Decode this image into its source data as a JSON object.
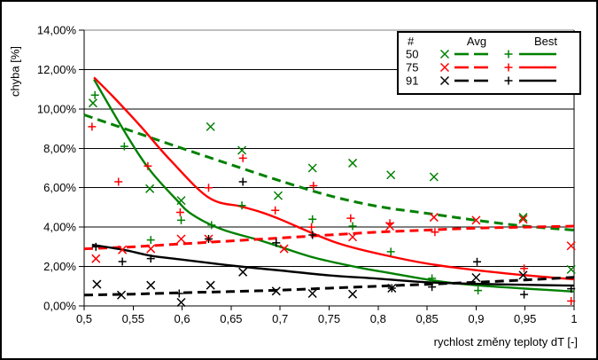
{
  "chart_data": {
    "type": "scatter",
    "title": "",
    "ylabel": "chyba [%]",
    "xlabel": "rychlost změny teploty dT [-]",
    "x_range": [
      0.5,
      1.0
    ],
    "y_range_pct": [
      0,
      14
    ],
    "grid": "horizontal",
    "x_ticks": [
      "0,5",
      "0,55",
      "0,6",
      "0,65",
      "0,7",
      "0,75",
      "0,8",
      "0,85",
      "0,9",
      "0,95",
      "1"
    ],
    "x_tick_values": [
      0.5,
      0.55,
      0.6,
      0.65,
      0.7,
      0.75,
      0.8,
      0.85,
      0.9,
      0.95,
      1.0
    ],
    "y_ticks": [
      "0,00%",
      "2,00%",
      "4,00%",
      "6,00%",
      "8,00%",
      "10,00%",
      "12,00%",
      "14,00%"
    ],
    "y_tick_values": [
      0,
      2,
      4,
      6,
      8,
      10,
      12,
      14
    ],
    "legend": {
      "position": "top-right-inside",
      "col_hash": "#",
      "col_avg": "Avg",
      "col_best": "Best",
      "rows": [
        "50",
        "75",
        "91"
      ]
    },
    "colors": {
      "50": "#008000",
      "75": "#ff0000",
      "91": "#000000",
      "plot_top_border": "#808080"
    },
    "series": [
      {
        "name": "avg-50-trend",
        "group": "50",
        "kind": "trend",
        "style": "dashed",
        "color": "#008000",
        "points": [
          [
            0.5,
            9.7
          ],
          [
            0.55,
            8.85
          ],
          [
            0.6,
            8.0
          ],
          [
            0.66,
            7.0
          ],
          [
            0.7,
            6.35
          ],
          [
            0.75,
            5.6
          ],
          [
            0.8,
            5.05
          ],
          [
            0.85,
            4.7
          ],
          [
            0.9,
            4.35
          ],
          [
            0.95,
            4.05
          ],
          [
            1.0,
            3.85
          ]
        ]
      },
      {
        "name": "best-50-trend",
        "group": "50",
        "kind": "trend",
        "style": "solid",
        "color": "#008000",
        "points": [
          [
            0.51,
            11.5
          ],
          [
            0.543,
            8.7
          ],
          [
            0.567,
            6.9
          ],
          [
            0.594,
            5.4
          ],
          [
            0.61,
            4.65
          ],
          [
            0.64,
            3.9
          ],
          [
            0.678,
            3.35
          ],
          [
            0.7,
            3.0
          ],
          [
            0.735,
            2.45
          ],
          [
            0.78,
            1.95
          ],
          [
            0.814,
            1.65
          ],
          [
            0.86,
            1.26
          ],
          [
            0.9,
            1.05
          ],
          [
            0.95,
            0.88
          ],
          [
            1.0,
            0.73
          ]
        ]
      },
      {
        "name": "avg-75-trend",
        "group": "75",
        "kind": "trend",
        "style": "dashed",
        "color": "#ff0000",
        "points": [
          [
            0.5,
            2.9
          ],
          [
            0.55,
            3.0
          ],
          [
            0.6,
            3.15
          ],
          [
            0.65,
            3.3
          ],
          [
            0.7,
            3.45
          ],
          [
            0.75,
            3.6
          ],
          [
            0.8,
            3.75
          ],
          [
            0.85,
            3.85
          ],
          [
            0.9,
            3.95
          ],
          [
            0.95,
            4.0
          ],
          [
            1.0,
            4.05
          ]
        ]
      },
      {
        "name": "best-75-trend",
        "group": "75",
        "kind": "trend",
        "style": "solid",
        "color": "#ff0000",
        "points": [
          [
            0.51,
            11.6
          ],
          [
            0.53,
            10.6
          ],
          [
            0.558,
            9.1
          ],
          [
            0.588,
            7.4
          ],
          [
            0.627,
            5.5
          ],
          [
            0.66,
            5.05
          ],
          [
            0.678,
            4.8
          ],
          [
            0.7,
            4.4
          ],
          [
            0.758,
            3.2
          ],
          [
            0.814,
            2.5
          ],
          [
            0.86,
            2.07
          ],
          [
            0.93,
            1.65
          ],
          [
            1.0,
            1.35
          ]
        ]
      },
      {
        "name": "avg-91-trend",
        "group": "91",
        "kind": "trend",
        "style": "dashed",
        "color": "#000000",
        "points": [
          [
            0.5,
            0.55
          ],
          [
            0.55,
            0.6
          ],
          [
            0.6,
            0.67
          ],
          [
            0.65,
            0.73
          ],
          [
            0.7,
            0.8
          ],
          [
            0.75,
            0.9
          ],
          [
            0.8,
            1.0
          ],
          [
            0.85,
            1.1
          ],
          [
            0.9,
            1.2
          ],
          [
            0.95,
            1.32
          ],
          [
            1.0,
            1.45
          ]
        ]
      },
      {
        "name": "best-91-trend",
        "group": "91",
        "kind": "trend",
        "style": "solid",
        "color": "#000000",
        "points": [
          [
            0.508,
            3.1
          ],
          [
            0.54,
            2.85
          ],
          [
            0.568,
            2.55
          ],
          [
            0.6,
            2.35
          ],
          [
            0.65,
            2.05
          ],
          [
            0.7,
            1.8
          ],
          [
            0.75,
            1.55
          ],
          [
            0.8,
            1.38
          ],
          [
            0.85,
            1.2
          ],
          [
            0.9,
            1.12
          ],
          [
            0.95,
            1.07
          ],
          [
            1.0,
            1.03
          ]
        ]
      },
      {
        "name": "avg-50-samples",
        "group": "50",
        "kind": "scatter",
        "marker": "x",
        "color": "#008000",
        "points": [
          [
            0.509,
            10.3
          ],
          [
            0.567,
            5.95
          ],
          [
            0.599,
            5.35
          ],
          [
            0.629,
            9.1
          ],
          [
            0.661,
            7.9
          ],
          [
            0.698,
            5.6
          ],
          [
            0.733,
            7.0
          ],
          [
            0.774,
            7.25
          ],
          [
            0.813,
            6.65
          ],
          [
            0.857,
            6.55
          ],
          [
            0.948,
            4.5
          ],
          [
            0.997,
            1.85
          ]
        ]
      },
      {
        "name": "best-50-samples",
        "group": "50",
        "kind": "scatter",
        "marker": "+",
        "color": "#008000",
        "points": [
          [
            0.511,
            10.7
          ],
          [
            0.541,
            8.1
          ],
          [
            0.568,
            3.35
          ],
          [
            0.599,
            4.35
          ],
          [
            0.63,
            4.1
          ],
          [
            0.661,
            5.1
          ],
          [
            0.733,
            4.4
          ],
          [
            0.774,
            4.05
          ],
          [
            0.813,
            2.75
          ],
          [
            0.855,
            1.4
          ],
          [
            0.902,
            0.78
          ]
        ]
      },
      {
        "name": "avg-75-samples",
        "group": "75",
        "kind": "scatter",
        "marker": "x",
        "color": "#ff0000",
        "points": [
          [
            0.512,
            2.4
          ],
          [
            0.539,
            2.85
          ],
          [
            0.568,
            2.9
          ],
          [
            0.599,
            3.4
          ],
          [
            0.627,
            3.4
          ],
          [
            0.704,
            2.9
          ],
          [
            0.774,
            3.5
          ],
          [
            0.812,
            4.05
          ],
          [
            0.857,
            4.5
          ],
          [
            0.9,
            4.35
          ],
          [
            0.948,
            4.4
          ],
          [
            0.997,
            3.05
          ]
        ]
      },
      {
        "name": "best-75-samples",
        "group": "75",
        "kind": "scatter",
        "marker": "+",
        "color": "#ff0000",
        "points": [
          [
            0.508,
            9.1
          ],
          [
            0.535,
            6.3
          ],
          [
            0.565,
            7.1
          ],
          [
            0.598,
            4.75
          ],
          [
            0.627,
            6.0
          ],
          [
            0.662,
            7.5
          ],
          [
            0.695,
            4.85
          ],
          [
            0.732,
            4.0
          ],
          [
            0.734,
            6.1
          ],
          [
            0.772,
            4.45
          ],
          [
            0.812,
            4.2
          ],
          [
            0.858,
            3.75
          ],
          [
            0.949,
            1.9
          ],
          [
            0.997,
            0.25
          ]
        ]
      },
      {
        "name": "avg-91-samples",
        "group": "91",
        "kind": "scatter",
        "marker": "x",
        "color": "#000000",
        "points": [
          [
            0.513,
            1.1
          ],
          [
            0.538,
            0.55
          ],
          [
            0.568,
            1.05
          ],
          [
            0.599,
            0.18
          ],
          [
            0.629,
            1.05
          ],
          [
            0.662,
            1.72
          ],
          [
            0.696,
            0.75
          ],
          [
            0.733,
            0.63
          ],
          [
            0.774,
            0.6
          ],
          [
            0.814,
            0.9
          ],
          [
            0.9,
            1.44
          ],
          [
            0.948,
            1.56
          ]
        ]
      },
      {
        "name": "best-91-samples",
        "group": "91",
        "kind": "scatter",
        "marker": "+",
        "color": "#000000",
        "points": [
          [
            0.512,
            3.0
          ],
          [
            0.539,
            2.25
          ],
          [
            0.568,
            2.4
          ],
          [
            0.597,
            0.63
          ],
          [
            0.627,
            3.4
          ],
          [
            0.662,
            6.3
          ],
          [
            0.696,
            3.2
          ],
          [
            0.733,
            3.6
          ],
          [
            0.814,
            0.9
          ],
          [
            0.855,
            0.96
          ],
          [
            0.901,
            2.24
          ],
          [
            0.949,
            0.58
          ],
          [
            0.997,
            0.87
          ]
        ]
      }
    ]
  }
}
